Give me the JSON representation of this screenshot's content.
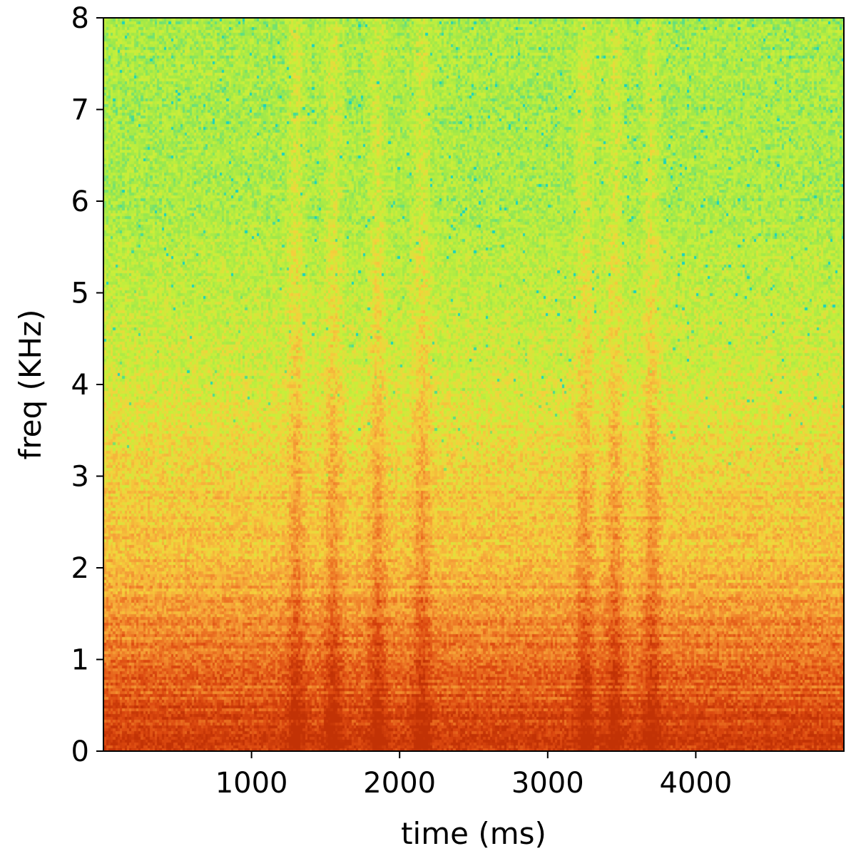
{
  "chart_data": {
    "type": "heatmap",
    "subtype": "spectrogram",
    "title": "",
    "xlabel": "time (ms)",
    "ylabel": "freq (KHz)",
    "xlim": [
      0,
      5000
    ],
    "ylim": [
      0,
      8
    ],
    "x_ticks": [
      1000,
      2000,
      3000,
      4000
    ],
    "x_tick_labels": [
      "1000",
      "2000",
      "3000",
      "4000"
    ],
    "y_ticks": [
      0,
      1,
      2,
      3,
      4,
      5,
      6,
      7,
      8
    ],
    "y_tick_labels": [
      "0",
      "1",
      "2",
      "3",
      "4",
      "5",
      "6",
      "7",
      "8"
    ],
    "grid": false,
    "legend": "none",
    "colormap": {
      "name": "jet-like (orange to green)",
      "stops": [
        "#18d3c0",
        "#9ee84a",
        "#c8ef3a",
        "#f4d23c",
        "#f6a83a",
        "#ee7a26",
        "#dd4a10",
        "#c23205"
      ]
    },
    "intensity_profile": {
      "description": "relative energy by frequency (0 = low, 1 = high), values sampled at freq (KHz)",
      "freq_khz": [
        0,
        0.3,
        0.6,
        1.0,
        1.4,
        1.8,
        2.2,
        2.6,
        3.0,
        3.5,
        4.0,
        5.0,
        6.0,
        7.0,
        8.0
      ],
      "level": [
        0.95,
        0.9,
        0.82,
        0.72,
        0.66,
        0.55,
        0.5,
        0.48,
        0.44,
        0.38,
        0.32,
        0.26,
        0.2,
        0.2,
        0.2
      ]
    },
    "vertical_bands_ms": [
      1300,
      1550,
      1850,
      2150,
      3250,
      3450,
      3700
    ],
    "noise": "speckled"
  }
}
